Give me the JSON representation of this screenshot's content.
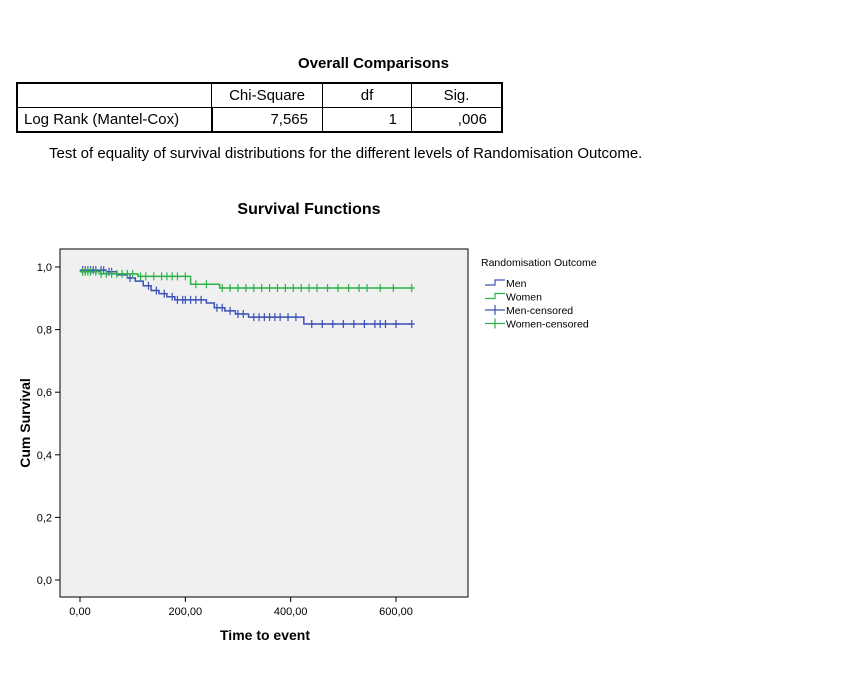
{
  "table": {
    "title": "Overall Comparisons",
    "headers": [
      "",
      "Chi-Square",
      "df",
      "Sig."
    ],
    "row": {
      "label": "Log Rank (Mantel-Cox)",
      "chi_square": "7,565",
      "df": "1",
      "sig": ",006"
    },
    "note": "Test of equality of survival distributions for the different levels of Randomisation Outcome."
  },
  "chart_data": {
    "type": "line",
    "title": "Survival Functions",
    "xlabel": "Time to event",
    "ylabel": "Cum Survival",
    "xlim": [
      -30,
      740
    ],
    "ylim": [
      -0.03,
      1.07
    ],
    "xticks": [
      0,
      200,
      400,
      600
    ],
    "xtick_labels": [
      "0,00",
      "200,00",
      "400,00",
      "600,00"
    ],
    "yticks": [
      0,
      0.2,
      0.4,
      0.6,
      0.8,
      1.0
    ],
    "ytick_labels": [
      "0,0",
      "0,2",
      "0,4",
      "0,6",
      "0,8",
      "1,0"
    ],
    "legend": {
      "title": "Randomisation Outcome",
      "placement": "right",
      "entries": [
        "Men",
        "Women",
        "Men-censored",
        "Women-censored"
      ]
    },
    "series": [
      {
        "name": "Men",
        "color": "#3B51B5",
        "steps": [
          [
            0,
            0.99
          ],
          [
            50,
            0.985
          ],
          [
            70,
            0.975
          ],
          [
            90,
            0.965
          ],
          [
            105,
            0.955
          ],
          [
            120,
            0.94
          ],
          [
            135,
            0.925
          ],
          [
            150,
            0.915
          ],
          [
            165,
            0.905
          ],
          [
            180,
            0.895
          ],
          [
            240,
            0.885
          ],
          [
            255,
            0.87
          ],
          [
            275,
            0.86
          ],
          [
            295,
            0.85
          ],
          [
            320,
            0.84
          ],
          [
            425,
            0.818
          ],
          [
            630,
            0.818
          ]
        ],
        "censored": [
          5,
          10,
          15,
          20,
          25,
          30,
          40,
          45,
          55,
          60,
          95,
          130,
          145,
          160,
          175,
          185,
          195,
          200,
          210,
          220,
          230,
          260,
          270,
          285,
          300,
          310,
          330,
          340,
          350,
          360,
          370,
          380,
          395,
          410,
          440,
          460,
          480,
          500,
          520,
          540,
          560,
          570,
          580,
          600,
          630
        ]
      },
      {
        "name": "Women",
        "color": "#2DB34A",
        "steps": [
          [
            0,
            0.985
          ],
          [
            40,
            0.978
          ],
          [
            110,
            0.97
          ],
          [
            210,
            0.945
          ],
          [
            265,
            0.933
          ],
          [
            630,
            0.933
          ]
        ],
        "censored": [
          5,
          10,
          15,
          20,
          30,
          40,
          50,
          60,
          70,
          80,
          90,
          100,
          115,
          125,
          140,
          155,
          165,
          175,
          185,
          200,
          220,
          240,
          270,
          285,
          300,
          315,
          330,
          345,
          360,
          375,
          390,
          405,
          420,
          435,
          450,
          470,
          490,
          510,
          530,
          545,
          570,
          595,
          630
        ]
      }
    ]
  }
}
